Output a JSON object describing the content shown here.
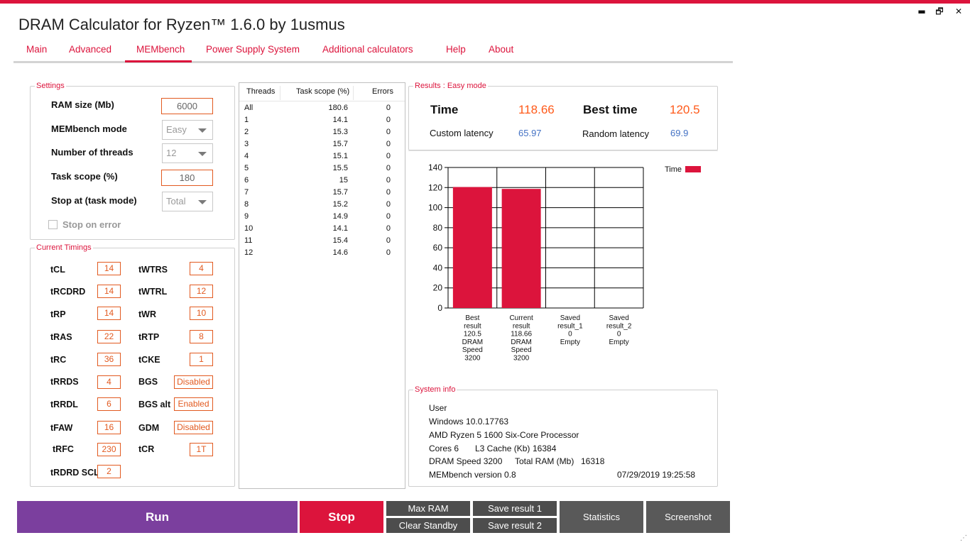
{
  "window": {
    "title": "DRAM Calculator for Ryzen™ 1.6.0 by 1usmus",
    "minimize_glyph": "▬",
    "restore_glyph": "🗗",
    "close_glyph": "✕"
  },
  "tabs": [
    "Main",
    "Advanced",
    "MEMbench",
    "Power Supply System",
    "Additional calculators",
    "Help",
    "About"
  ],
  "active_tab": "MEMbench",
  "settings": {
    "legend": "Settings",
    "ram_size_label": "RAM size (Mb)",
    "ram_size_value": "6000",
    "mode_label": "MEMbench mode",
    "mode_value": "Easy",
    "threads_label": "Number of threads",
    "threads_value": "12",
    "task_scope_label": "Task scope (%)",
    "task_scope_value": "180",
    "stop_at_label": "Stop at (task mode)",
    "stop_at_value": "Total",
    "stop_on_error_label": "Stop on error",
    "stop_on_error_checked": false
  },
  "timings": {
    "legend": "Current Timings",
    "left": [
      {
        "name": "tCL",
        "value": "14"
      },
      {
        "name": "tRCDRD",
        "value": "14"
      },
      {
        "name": "tRP",
        "value": "14"
      },
      {
        "name": "tRAS",
        "value": "22"
      },
      {
        "name": "tRC",
        "value": "36"
      },
      {
        "name": "tRRDS",
        "value": "4"
      },
      {
        "name": "tRRDL",
        "value": "6"
      },
      {
        "name": "tFAW",
        "value": "16"
      },
      {
        "name": "tRFC",
        "value": "230"
      },
      {
        "name": "tRDRD SCL",
        "value": "2"
      }
    ],
    "right": [
      {
        "name": "tWTRS",
        "value": "4"
      },
      {
        "name": "tWTRL",
        "value": "12"
      },
      {
        "name": "tWR",
        "value": "10"
      },
      {
        "name": "tRTP",
        "value": "8"
      },
      {
        "name": "tCKE",
        "value": "1"
      },
      {
        "name": "BGS",
        "value": "Disabled"
      },
      {
        "name": "BGS alt",
        "value": "Enabled"
      },
      {
        "name": "GDM",
        "value": "Disabled"
      },
      {
        "name": "tCR",
        "value": "1T"
      }
    ]
  },
  "thread_table": {
    "headers": [
      "Threads",
      "Task scope (%)",
      "Errors"
    ],
    "rows": [
      [
        "All",
        "180.6",
        "0"
      ],
      [
        "1",
        "14.1",
        "0"
      ],
      [
        "2",
        "15.3",
        "0"
      ],
      [
        "3",
        "15.7",
        "0"
      ],
      [
        "4",
        "15.1",
        "0"
      ],
      [
        "5",
        "15.5",
        "0"
      ],
      [
        "6",
        "15",
        "0"
      ],
      [
        "7",
        "15.7",
        "0"
      ],
      [
        "8",
        "15.2",
        "0"
      ],
      [
        "9",
        "14.9",
        "0"
      ],
      [
        "10",
        "14.1",
        "0"
      ],
      [
        "11",
        "15.4",
        "0"
      ],
      [
        "12",
        "14.6",
        "0"
      ]
    ]
  },
  "results": {
    "legend": "Results : Easy mode",
    "time_label": "Time",
    "time_value": "118.66",
    "best_time_label": "Best time",
    "best_time_value": "120.5",
    "custom_latency_label": "Custom latency",
    "custom_latency_value": "65.97",
    "random_latency_label": "Random latency",
    "random_latency_value": "69.9"
  },
  "chart_data": {
    "type": "bar",
    "categories": [
      [
        "Best",
        "result",
        "120.5",
        "DRAM",
        "Speed",
        "3200"
      ],
      [
        "Current",
        "result",
        "118.66",
        "DRAM",
        "Speed",
        "3200"
      ],
      [
        "Saved",
        "result_1",
        "0",
        "Empty"
      ],
      [
        "Saved",
        "result_2",
        "0",
        "Empty"
      ]
    ],
    "series": [
      {
        "name": "Time",
        "values": [
          120.5,
          118.66,
          0,
          0
        ],
        "color": "#dc143c"
      }
    ],
    "ylim": [
      0,
      140
    ],
    "yticks": [
      "0",
      "20",
      "40",
      "60",
      "80",
      "100",
      "120",
      "140"
    ],
    "grid": true,
    "legend_position": "top-right"
  },
  "system_info": {
    "legend": "System info",
    "user": "User",
    "os": "Windows 10.0.17763",
    "cpu": "AMD Ryzen 5 1600 Six-Core Processor",
    "cores_label": "Cores 6",
    "l3_label": "L3 Cache (Kb)",
    "l3_value": "16384",
    "dram_speed": "DRAM Speed 3200",
    "total_ram_label": "Total RAM (Mb)",
    "total_ram_value": "16318",
    "membench_version": "MEMbench version 0.8",
    "timestamp": "07/29/2019 19:25:58"
  },
  "buttons": {
    "run": "Run",
    "stop": "Stop",
    "max_ram": "Max RAM",
    "clear_standby": "Clear Standby",
    "save_result_1": "Save result 1",
    "save_result_2": "Save result 2",
    "statistics": "Statistics",
    "screenshot": "Screenshot"
  }
}
